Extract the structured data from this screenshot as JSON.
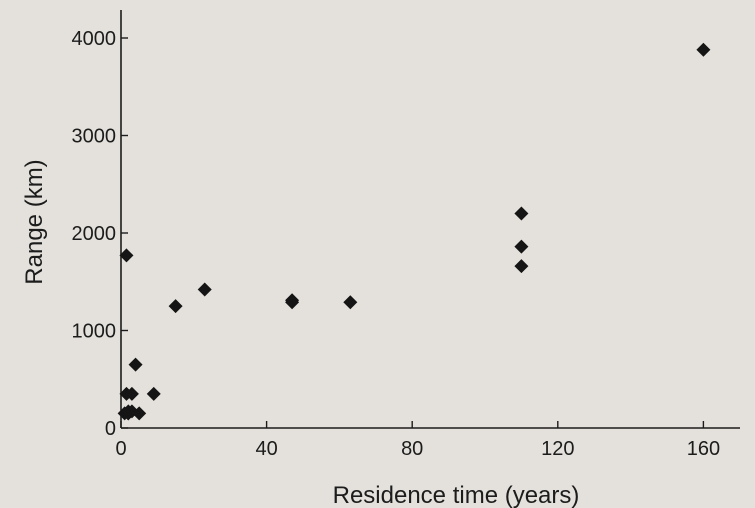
{
  "chart_data": {
    "type": "scatter",
    "title": "",
    "xlabel": "Residence time (years)",
    "ylabel": "Range (km)",
    "xlim": [
      0,
      170
    ],
    "ylim": [
      0,
      4200
    ],
    "xticks": [
      0,
      40,
      80,
      120,
      160
    ],
    "yticks": [
      0,
      1000,
      2000,
      3000,
      4000
    ],
    "grid": false,
    "legend": "none",
    "marker": "diamond",
    "marker_color": "#151515",
    "series": [
      {
        "x": [
          1,
          2,
          1.5,
          2,
          3,
          3,
          4,
          5,
          1.5,
          2,
          9,
          15,
          23,
          47,
          47,
          63,
          110,
          110,
          110,
          160
        ],
        "y": [
          150,
          150,
          350,
          150,
          170,
          350,
          650,
          150,
          1770,
          170,
          350,
          1250,
          1420,
          1310,
          1290,
          1290,
          1660,
          1860,
          2200,
          3880
        ]
      }
    ]
  }
}
